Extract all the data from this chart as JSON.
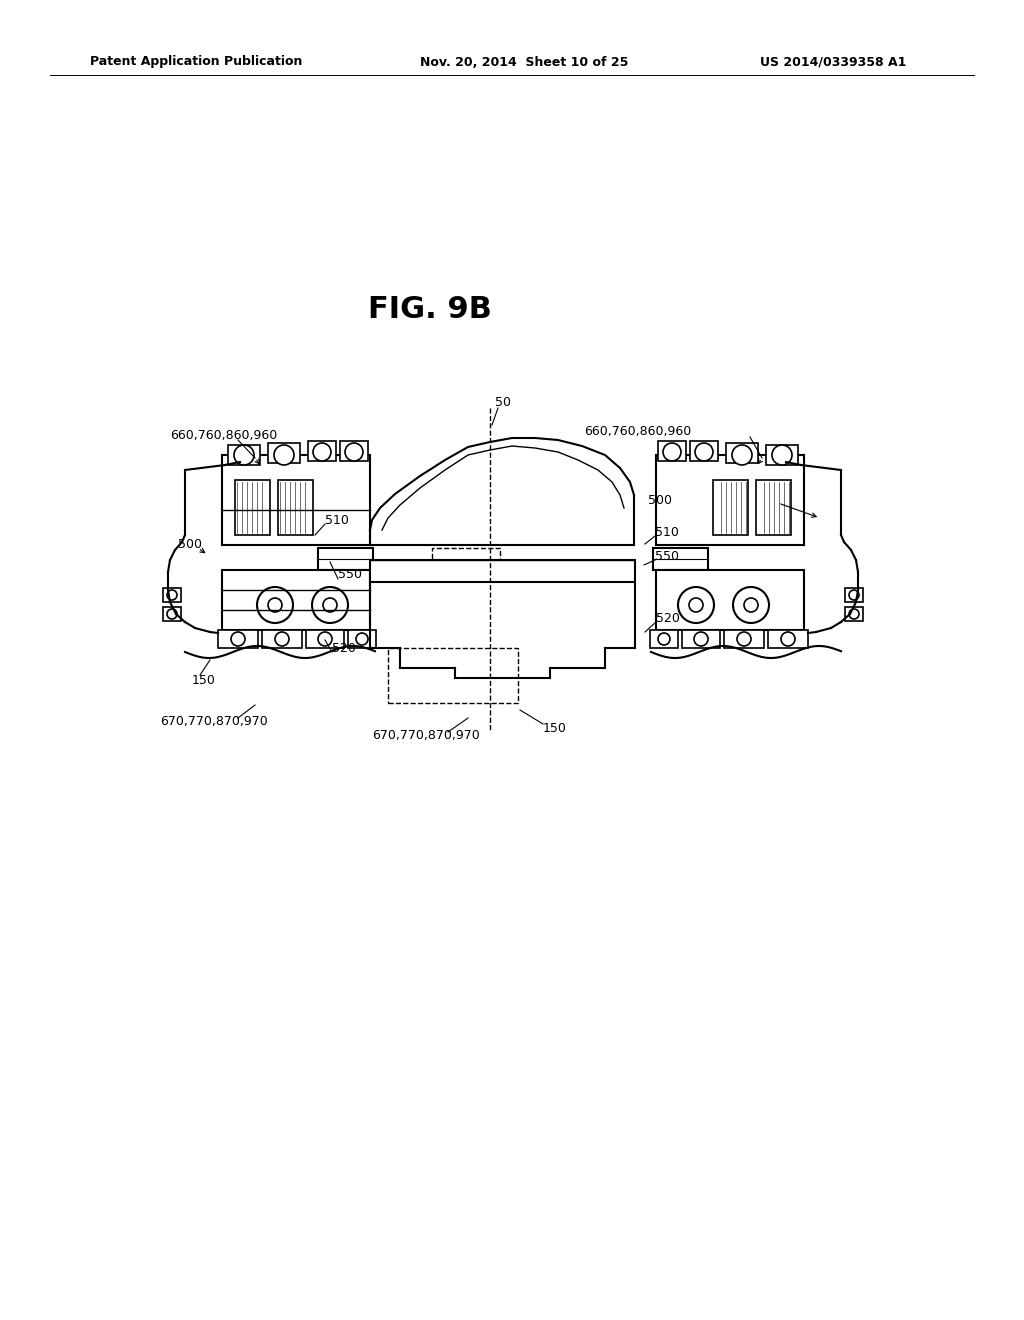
{
  "background_color": "#ffffff",
  "header_left": "Patent Application Publication",
  "header_center": "Nov. 20, 2014  Sheet 10 of 25",
  "header_right": "US 2014/0339358 A1",
  "fig_label": "FIG. 9B",
  "line_color": "#000000",
  "text_color": "#000000"
}
